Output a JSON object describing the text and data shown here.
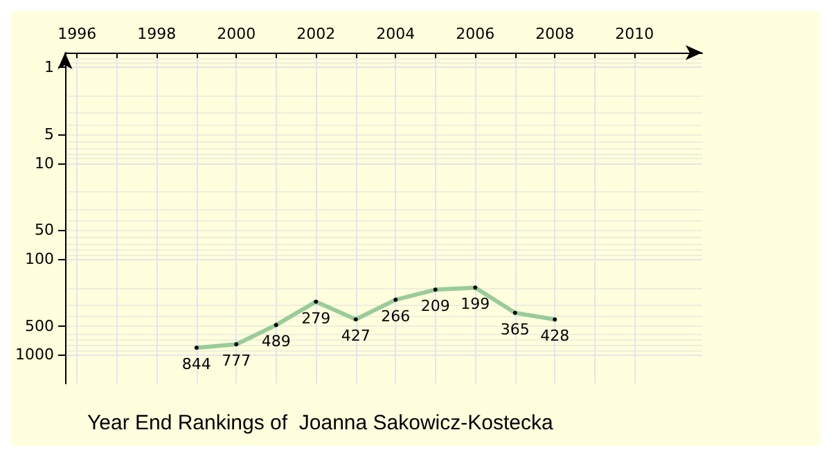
{
  "chart_data": {
    "type": "line",
    "title": "Year End Rankings of  Joanna Sakowicz-Kostecka",
    "x": [
      1999,
      2000,
      2001,
      2002,
      2003,
      2004,
      2005,
      2006,
      2007,
      2008
    ],
    "series": [
      {
        "color": "#99cc99",
        "values": [
          844,
          777,
          489,
          279,
          427,
          266,
          209,
          199,
          365,
          428
        ]
      }
    ],
    "xlim": [
      1995.7,
      2011.7
    ],
    "xticks": [
      1996,
      {
        "value": 1997,
        "label": null
      },
      1998,
      {
        "value": 1999,
        "label": null
      },
      2000,
      {
        "value": 2001,
        "label": null
      },
      2002,
      {
        "value": 2003,
        "label": null
      },
      2004,
      {
        "value": 2005,
        "label": null
      },
      2006,
      {
        "value": 2007,
        "label": null
      },
      2008,
      {
        "value": 2009,
        "label": null
      },
      2010
    ],
    "ylim": [
      2000,
      0.7
    ],
    "yticks": [
      1,
      5,
      10,
      50,
      100,
      500,
      1000
    ],
    "log": "y",
    "grid": true,
    "marker": "circle",
    "line_style": "solid",
    "data_labels": true
  }
}
